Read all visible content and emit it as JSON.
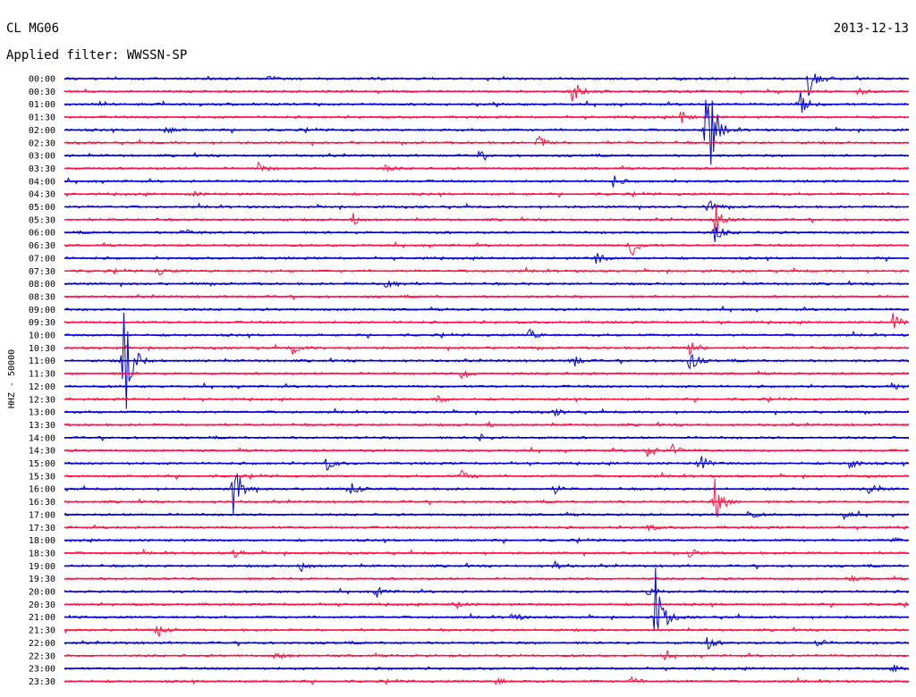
{
  "header": {
    "station": "CL MG06",
    "date": "2013-12-13",
    "filter": "Applied filter: WWSSN-SP"
  },
  "chart_data": {
    "type": "line",
    "title": "CL MG06",
    "subtitle": "Applied filter: WWSSN-SP",
    "ylabel": "HHZ - 50000",
    "colors": [
      "#0000d8",
      "#ff1446"
    ],
    "traces": [
      {
        "label": "00:00",
        "events": [
          [
            0.24,
            0.5
          ],
          [
            0.88,
            3.5
          ]
        ]
      },
      {
        "label": "00:30",
        "events": [
          [
            0.6,
            2.5
          ],
          [
            0.94,
            0.6
          ]
        ]
      },
      {
        "label": "01:00",
        "events": [
          [
            0.87,
            1.9
          ]
        ]
      },
      {
        "label": "01:30",
        "events": [
          [
            0.73,
            0.9
          ]
        ]
      },
      {
        "label": "02:00",
        "events": [
          [
            0.76,
            10
          ],
          [
            0.12,
            0.5
          ]
        ]
      },
      {
        "label": "02:30",
        "events": [
          [
            0.56,
            1.1
          ]
        ]
      },
      {
        "label": "03:00",
        "events": [
          [
            0.49,
            0.6
          ]
        ]
      },
      {
        "label": "03:30",
        "events": [
          [
            0.23,
            0.8
          ],
          [
            0.38,
            0.5
          ]
        ]
      },
      {
        "label": "04:00",
        "events": [
          [
            0.65,
            0.7
          ]
        ]
      },
      {
        "label": "04:30",
        "events": [
          [
            0.15,
            0.4
          ]
        ]
      },
      {
        "label": "05:00",
        "events": [
          [
            0.76,
            1.2
          ]
        ]
      },
      {
        "label": "05:30",
        "events": [
          [
            0.77,
            2.2
          ],
          [
            0.34,
            1.0
          ]
        ]
      },
      {
        "label": "06:00",
        "events": [
          [
            0.14,
            0.9
          ],
          [
            0.77,
            1.5
          ]
        ]
      },
      {
        "label": "06:30",
        "events": [
          [
            0.67,
            2.0
          ]
        ]
      },
      {
        "label": "07:00",
        "events": [
          [
            0.63,
            0.8
          ]
        ]
      },
      {
        "label": "07:30",
        "events": [
          [
            0.11,
            0.6
          ]
        ]
      },
      {
        "label": "08:00",
        "events": [
          [
            0.38,
            1.6
          ]
        ]
      },
      {
        "label": "08:30",
        "events": []
      },
      {
        "label": "09:00",
        "events": []
      },
      {
        "label": "09:30",
        "events": [
          [
            0.98,
            1.4
          ]
        ]
      },
      {
        "label": "10:00",
        "events": [
          [
            0.55,
            0.9
          ]
        ]
      },
      {
        "label": "10:30",
        "events": [
          [
            0.27,
            0.8
          ],
          [
            0.74,
            1.4
          ]
        ]
      },
      {
        "label": "11:00",
        "events": [
          [
            0.6,
            1.2
          ],
          [
            0.74,
            1.6
          ],
          [
            0.07,
            10
          ]
        ]
      },
      {
        "label": "11:30",
        "events": [
          [
            0.47,
            0.9
          ]
        ]
      },
      {
        "label": "12:00",
        "events": [
          [
            0.98,
            0.7
          ]
        ]
      },
      {
        "label": "12:30",
        "events": [
          [
            0.44,
            0.8
          ]
        ]
      },
      {
        "label": "13:00",
        "events": [
          [
            0.58,
            0.5
          ]
        ]
      },
      {
        "label": "13:30",
        "events": [
          [
            0.5,
            0.35
          ]
        ]
      },
      {
        "label": "14:00",
        "events": [
          [
            0.49,
            0.6
          ]
        ]
      },
      {
        "label": "14:30",
        "events": [
          [
            0.69,
            1.1
          ],
          [
            0.72,
            0.9
          ]
        ]
      },
      {
        "label": "15:00",
        "events": [
          [
            0.75,
            1.7
          ],
          [
            0.93,
            0.9
          ],
          [
            0.31,
            0.9
          ]
        ]
      },
      {
        "label": "15:30",
        "events": [
          [
            0.47,
            0.9
          ]
        ]
      },
      {
        "label": "16:00",
        "events": [
          [
            0.2,
            4.0
          ],
          [
            0.34,
            1.0
          ],
          [
            0.58,
            0.7
          ],
          [
            0.95,
            1.3
          ]
        ]
      },
      {
        "label": "16:30",
        "events": [
          [
            0.77,
            3.0
          ]
        ]
      },
      {
        "label": "17:00",
        "events": [
          [
            0.81,
            0.7
          ],
          [
            0.92,
            0.7
          ]
        ]
      },
      {
        "label": "17:30",
        "events": [
          [
            0.69,
            0.5
          ]
        ]
      },
      {
        "label": "18:00",
        "events": [
          [
            0.98,
            0.4
          ]
        ]
      },
      {
        "label": "18:30",
        "events": [
          [
            0.2,
            0.7
          ],
          [
            0.74,
            0.7
          ]
        ]
      },
      {
        "label": "19:00",
        "events": [
          [
            0.28,
            0.8
          ],
          [
            0.58,
            0.6
          ]
        ]
      },
      {
        "label": "19:30",
        "events": [
          [
            0.93,
            0.4
          ]
        ]
      },
      {
        "label": "20:00",
        "events": [
          [
            0.37,
            0.8
          ],
          [
            0.69,
            1.0
          ]
        ]
      },
      {
        "label": "20:30",
        "events": [
          [
            0.46,
            0.8
          ]
        ]
      },
      {
        "label": "21:00",
        "events": [
          [
            0.7,
            6.0
          ],
          [
            0.53,
            0.7
          ]
        ]
      },
      {
        "label": "21:30",
        "events": [
          [
            0.11,
            0.9
          ]
        ]
      },
      {
        "label": "22:00",
        "events": [
          [
            0.76,
            1.0
          ],
          [
            0.89,
            0.7
          ]
        ]
      },
      {
        "label": "22:30",
        "events": [
          [
            0.25,
            0.6
          ],
          [
            0.71,
            0.5
          ]
        ]
      },
      {
        "label": "23:00",
        "events": [
          [
            0.98,
            0.7
          ]
        ]
      },
      {
        "label": "23:30",
        "events": [
          [
            0.51,
            0.6
          ],
          [
            0.67,
            0.6
          ]
        ]
      }
    ]
  }
}
